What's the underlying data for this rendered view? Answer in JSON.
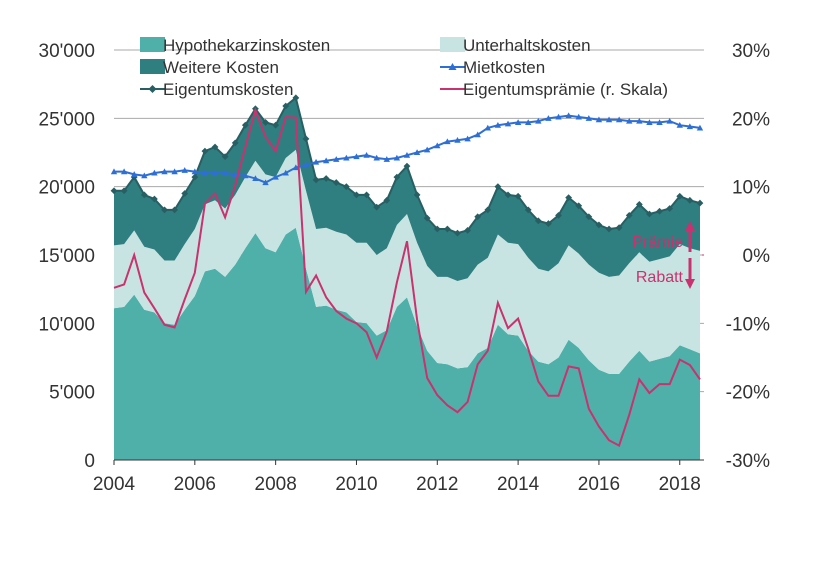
{
  "chart_data": {
    "type": "area",
    "title": "",
    "xlabel": "",
    "ylabel": "",
    "xlim": [
      2004,
      2018.6
    ],
    "ylim_left": [
      0,
      30000
    ],
    "ylim_right": [
      -30,
      30
    ],
    "x_ticks": [
      2004,
      2006,
      2008,
      2010,
      2012,
      2014,
      2016,
      2018
    ],
    "x_tick_labels": [
      "2004",
      "2006",
      "2008",
      "2010",
      "2012",
      "2014",
      "2016",
      "2018"
    ],
    "y_left_ticks": [
      0,
      5000,
      10000,
      15000,
      20000,
      25000,
      30000
    ],
    "y_left_tick_labels": [
      "0",
      "5'000",
      "10'000",
      "15'000",
      "20'000",
      "25'000",
      "30'000"
    ],
    "y_right_ticks": [
      -30,
      -20,
      -10,
      0,
      10,
      20,
      30
    ],
    "y_right_tick_labels": [
      "-30%",
      "-20%",
      "-10%",
      "0%",
      "10%",
      "20%",
      "30%"
    ],
    "legend_position": "top",
    "annotations": [
      "Prämie",
      "Rabatt"
    ],
    "colors": {
      "hypothekar": "#4fb0aa",
      "unterhalt": "#c8e4e2",
      "weitere": "#2f7e80",
      "eigentum_line": "#275f63",
      "miet": "#2e6fd6",
      "praemie": "#c8326f"
    },
    "x": [
      2004,
      2004.25,
      2004.5,
      2004.75,
      2005,
      2005.25,
      2005.5,
      2005.75,
      2006,
      2006.25,
      2006.5,
      2006.75,
      2007,
      2007.25,
      2007.5,
      2007.75,
      2008,
      2008.25,
      2008.5,
      2008.75,
      2009,
      2009.25,
      2009.5,
      2009.75,
      2010,
      2010.25,
      2010.5,
      2010.75,
      2011,
      2011.25,
      2011.5,
      2011.75,
      2012,
      2012.25,
      2012.5,
      2012.75,
      2013,
      2013.25,
      2013.5,
      2013.75,
      2014,
      2014.25,
      2014.5,
      2014.75,
      2015,
      2015.25,
      2015.5,
      2015.75,
      2016,
      2016.25,
      2016.5,
      2016.75,
      2017,
      2017.25,
      2017.5,
      2017.75,
      2018,
      2018.25,
      2018.5
    ],
    "series": [
      {
        "name": "Hypothekarzinskosten",
        "kind": "area",
        "values": [
          11100,
          11200,
          12100,
          11000,
          10800,
          10000,
          9900,
          11000,
          12000,
          13800,
          14000,
          13400,
          14300,
          15500,
          16600,
          15500,
          15200,
          16500,
          17000,
          14000,
          11200,
          11300,
          11000,
          10800,
          10100,
          10000,
          9100,
          9500,
          11200,
          11900,
          9800,
          8000,
          7100,
          7000,
          6700,
          6800,
          7800,
          8200,
          9900,
          9200,
          9100,
          8000,
          7200,
          7000,
          7500,
          8800,
          8200,
          7300,
          6600,
          6300,
          6300,
          7200,
          8000,
          7200,
          7400,
          7600,
          8400,
          8100,
          7800
        ]
      },
      {
        "name": "Unterhaltskosten",
        "kind": "area",
        "values": [
          4600,
          4600,
          4700,
          4600,
          4600,
          4600,
          4700,
          4800,
          4900,
          4900,
          5000,
          5000,
          5100,
          5200,
          5300,
          5400,
          5500,
          5600,
          5700,
          5700,
          5700,
          5700,
          5700,
          5700,
          5800,
          5900,
          5900,
          6000,
          6000,
          6100,
          6100,
          6200,
          6300,
          6400,
          6400,
          6500,
          6500,
          6600,
          6600,
          6700,
          6700,
          6800,
          6800,
          6800,
          6900,
          6900,
          6900,
          7000,
          7100,
          7100,
          7200,
          7200,
          7200,
          7300,
          7300,
          7300,
          7400,
          7400,
          7500
        ]
      },
      {
        "name": "Weitere Kosten",
        "kind": "area",
        "values": [
          4000,
          3900,
          3900,
          3800,
          3700,
          3700,
          3700,
          3700,
          3800,
          3900,
          3900,
          3800,
          3800,
          3800,
          3800,
          3800,
          3800,
          3800,
          3800,
          3800,
          3600,
          3600,
          3600,
          3500,
          3500,
          3500,
          3500,
          3500,
          3500,
          3500,
          3500,
          3500,
          3500,
          3500,
          3500,
          3500,
          3500,
          3500,
          3500,
          3500,
          3500,
          3500,
          3500,
          3500,
          3500,
          3500,
          3500,
          3500,
          3500,
          3500,
          3500,
          3500,
          3500,
          3500,
          3500,
          3500,
          3500,
          3500,
          3500
        ]
      },
      {
        "name": "Eigentumskosten",
        "kind": "line",
        "values": [
          19700,
          19700,
          20700,
          19400,
          19100,
          18300,
          18300,
          19500,
          20700,
          22600,
          22900,
          22200,
          23200,
          24500,
          25700,
          24700,
          24500,
          25900,
          26500,
          23500,
          20500,
          20600,
          20300,
          20000,
          19400,
          19400,
          18500,
          19000,
          20700,
          21500,
          19400,
          17700,
          16900,
          16900,
          16600,
          16800,
          17800,
          18300,
          20000,
          19400,
          19300,
          18300,
          17500,
          17300,
          17900,
          19200,
          18600,
          17800,
          17200,
          16900,
          17000,
          17900,
          18700,
          18000,
          18200,
          18400,
          19300,
          19000,
          18800
        ]
      },
      {
        "name": "Mietkosten",
        "kind": "line",
        "values": [
          21100,
          21100,
          20900,
          20800,
          21000,
          21100,
          21100,
          21200,
          21100,
          21000,
          21000,
          21000,
          20900,
          20800,
          20600,
          20300,
          20700,
          21000,
          21400,
          21600,
          21800,
          21900,
          22000,
          22100,
          22200,
          22300,
          22100,
          22000,
          22100,
          22300,
          22500,
          22700,
          23000,
          23300,
          23400,
          23500,
          23800,
          24300,
          24500,
          24600,
          24700,
          24700,
          24800,
          25000,
          25100,
          25200,
          25100,
          25000,
          24900,
          24900,
          24900,
          24800,
          24800,
          24700,
          24700,
          24800,
          24500,
          24400,
          24300
        ]
      },
      {
        "name": "Eigentumsprämie (r. Skala)",
        "kind": "line",
        "axis": "right",
        "values": [
          -4.8,
          -4.3,
          0,
          -5.5,
          -7.8,
          -10.2,
          -10.6,
          -6.5,
          -2.6,
          7.5,
          9.0,
          5.5,
          10.2,
          15.8,
          21.2,
          17.3,
          15.2,
          20.2,
          20.1,
          -5.4,
          -3,
          -6.2,
          -8.2,
          -9.3,
          -10,
          -11.3,
          -15,
          -11.2,
          -4,
          2,
          -9.5,
          -18,
          -20.5,
          -22,
          -23,
          -21.5,
          -16,
          -14,
          -7,
          -10.7,
          -9.3,
          -13.7,
          -18.5,
          -20.6,
          -20.6,
          -16.3,
          -16.6,
          -22.5,
          -25.1,
          -27.1,
          -27.9,
          -23.4,
          -18.2,
          -20.2,
          -18.9,
          -18.9,
          -15.3,
          -16.1,
          -18.2
        ]
      }
    ]
  }
}
